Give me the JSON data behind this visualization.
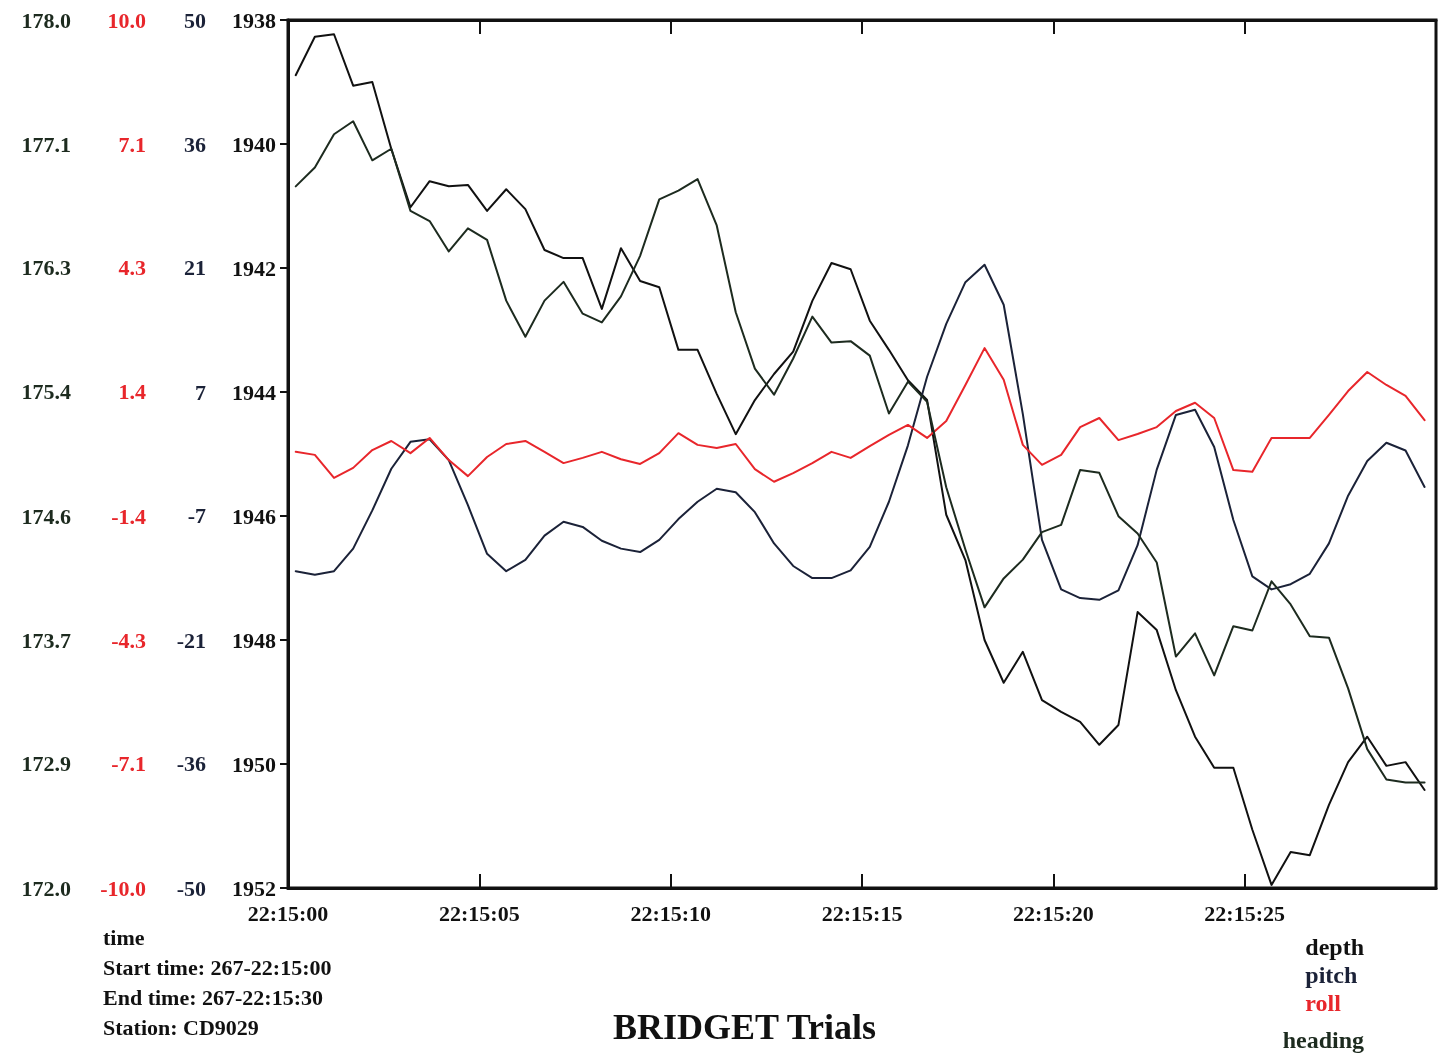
{
  "chart_data": [
    {
      "type": "line",
      "title": "BRIDGET Trials",
      "xlabel": "time",
      "annotations": [
        "Start time: 267-22:15:00",
        "End time: 267-22:15:30",
        "Station: CD9029"
      ],
      "legend": "bottom right",
      "xlim": [
        22.25,
        22.258333
      ],
      "xticks": [
        {
          "value": 22.25,
          "label": "22:15:00"
        },
        {
          "value": 22.251389,
          "label": "22:15:05"
        },
        {
          "value": 22.252778,
          "label": "22:15:10"
        },
        {
          "value": 22.254167,
          "label": "22:15:15"
        },
        {
          "value": 22.255556,
          "label": "22:15:20"
        },
        {
          "value": 22.256944,
          "label": "22:15:25"
        }
      ],
      "ylim": [
        1952,
        1938
      ],
      "yticks": [
        1938,
        1940,
        1942,
        1944,
        1946,
        1948,
        1950,
        1952
      ],
      "y2lim": [
        -50,
        50
      ],
      "y2ticks": [
        {
          "value": 50,
          "label": "50"
        },
        {
          "value": 35.71,
          "label": "36"
        },
        {
          "value": 21.43,
          "label": "21"
        },
        {
          "value": 7.14,
          "label": "7"
        },
        {
          "value": -7.14,
          "label": "-7"
        },
        {
          "value": -21.43,
          "label": "-21"
        },
        {
          "value": -35.71,
          "label": "-36"
        },
        {
          "value": -50,
          "label": "-50"
        }
      ],
      "y3lim": [
        -10,
        10
      ],
      "y3ticks": [
        {
          "value": 10,
          "label": "10.0"
        },
        {
          "value": 7.14,
          "label": "7.1"
        },
        {
          "value": 4.29,
          "label": "4.3"
        },
        {
          "value": 1.43,
          "label": "1.4"
        },
        {
          "value": -1.43,
          "label": "-1.4"
        },
        {
          "value": -4.29,
          "label": "-4.3"
        },
        {
          "value": -7.14,
          "label": "-7.1"
        },
        {
          "value": -10,
          "label": "-10.0"
        }
      ],
      "x": [
        22.250056,
        22.250195,
        22.250334,
        22.250473,
        22.250612,
        22.25075,
        22.250889,
        22.251028,
        22.251167,
        22.251306,
        22.251445,
        22.251584,
        22.251723,
        22.251862,
        22.252,
        22.252139,
        22.252278,
        22.252417,
        22.252556,
        22.252695,
        22.252834,
        22.252973,
        22.253112,
        22.25325,
        22.253389,
        22.253528,
        22.253667,
        22.253806,
        22.253945,
        22.254084,
        22.254223,
        22.254362,
        22.2545,
        22.254639,
        22.254778,
        22.254917,
        22.255056,
        22.255195,
        22.255334,
        22.255473,
        22.255612,
        22.25575,
        22.255889,
        22.256028,
        22.256167,
        22.256306,
        22.256445,
        22.256584,
        22.256723,
        22.256862,
        22.257,
        22.257139,
        22.257278,
        22.257417,
        22.257556,
        22.257695,
        22.257834,
        22.257973,
        22.258112,
        22.25825
      ],
      "series": [
        {
          "name": "depth",
          "color": "#111111",
          "values": [
            1938.89,
            1938.27,
            1938.23,
            1939.06,
            1939.0,
            1940.08,
            1941.02,
            1940.6,
            1940.68,
            1940.66,
            1941.08,
            1940.73,
            1941.05,
            1941.71,
            1941.84,
            1941.84,
            1942.66,
            1941.68,
            1942.21,
            1942.31,
            1943.32,
            1943.32,
            1944.03,
            1944.68,
            1944.13,
            1943.71,
            1943.35,
            1942.53,
            1941.92,
            1942.02,
            1942.85,
            1943.32,
            1943.81,
            1944.13,
            1945.98,
            1946.71,
            1948.0,
            1948.69,
            1948.19,
            1948.97,
            1949.16,
            1949.32,
            1949.69,
            1949.37,
            1947.55,
            1947.84,
            1948.81,
            1949.56,
            1950.06,
            1950.06,
            1951.06,
            1951.95,
            1951.42,
            1951.47,
            1950.66,
            1949.97,
            1949.56,
            1950.03,
            1949.97,
            1950.42
          ]
        },
        {
          "name": "pitch",
          "color": "#1b2238",
          "axis": "y2",
          "values": [
            -13.5,
            -13.9,
            -13.5,
            -10.9,
            -6.5,
            -1.7,
            1.4,
            1.7,
            -0.7,
            -5.9,
            -11.5,
            -13.5,
            -12.2,
            -9.4,
            -7.8,
            -8.4,
            -10.0,
            -10.9,
            -11.3,
            -9.9,
            -7.5,
            -5.5,
            -4.0,
            -4.4,
            -6.7,
            -10.3,
            -12.9,
            -14.3,
            -14.3,
            -13.4,
            -10.7,
            -5.5,
            1.0,
            8.9,
            15.0,
            19.8,
            21.8,
            17.2,
            4.6,
            -9.9,
            -15.6,
            -16.6,
            -16.8,
            -15.7,
            -10.5,
            -1.8,
            4.5,
            5.1,
            0.8,
            -7.6,
            -14.1,
            -15.6,
            -15.0,
            -13.8,
            -10.3,
            -4.8,
            -0.8,
            1.3,
            0.4,
            -3.8
          ]
        },
        {
          "name": "roll",
          "color": "#e8262b",
          "axis": "y3",
          "values": [
            0.05,
            -0.02,
            -0.55,
            -0.32,
            0.09,
            0.3,
            0.02,
            0.37,
            -0.14,
            -0.51,
            -0.07,
            0.23,
            0.3,
            0.05,
            -0.21,
            -0.09,
            0.05,
            -0.12,
            -0.23,
            0.02,
            0.48,
            0.21,
            0.14,
            0.23,
            -0.35,
            -0.64,
            -0.44,
            -0.21,
            0.05,
            -0.09,
            0.18,
            0.44,
            0.67,
            0.37,
            0.76,
            1.59,
            2.44,
            1.71,
            0.21,
            -0.25,
            -0.02,
            0.62,
            0.83,
            0.32,
            0.46,
            0.62,
            0.99,
            1.18,
            0.83,
            -0.37,
            -0.41,
            0.37,
            0.37,
            0.37,
            0.9,
            1.45,
            1.89,
            1.59,
            1.34,
            0.78
          ]
        }
      ]
    },
    {
      "type": "line",
      "legend": "bottom right",
      "tick_labels": "y",
      "xlim": [
        22.25,
        22.258333
      ],
      "ylim": [
        172,
        178
      ],
      "yticks": [
        {
          "value": 178,
          "label": "178.0"
        },
        {
          "value": 177.14,
          "label": "177.1"
        },
        {
          "value": 176.29,
          "label": "176.3"
        },
        {
          "value": 175.43,
          "label": "175.4"
        },
        {
          "value": 174.57,
          "label": "174.6"
        },
        {
          "value": 173.71,
          "label": "173.7"
        },
        {
          "value": 172.86,
          "label": "172.9"
        },
        {
          "value": 172,
          "label": "172.0"
        }
      ],
      "x": [
        22.250056,
        22.250195,
        22.250334,
        22.250473,
        22.250612,
        22.25075,
        22.250889,
        22.251028,
        22.251167,
        22.251306,
        22.251445,
        22.251584,
        22.251723,
        22.251862,
        22.252,
        22.252139,
        22.252278,
        22.252417,
        22.252556,
        22.252695,
        22.252834,
        22.252973,
        22.253112,
        22.25325,
        22.253389,
        22.253528,
        22.253667,
        22.253806,
        22.253945,
        22.254084,
        22.254223,
        22.254362,
        22.2545,
        22.254639,
        22.254778,
        22.254917,
        22.255056,
        22.255195,
        22.255334,
        22.255473,
        22.255612,
        22.25575,
        22.255889,
        22.256028,
        22.256167,
        22.256306,
        22.256445,
        22.256584,
        22.256723,
        22.256862,
        22.257,
        22.257139,
        22.257278,
        22.257417,
        22.257556,
        22.257695,
        22.257834,
        22.257973,
        22.258112,
        22.25825
      ],
      "series": [
        {
          "name": "heading",
          "color": "#1d2b1f",
          "values": [
            176.85,
            176.98,
            177.21,
            177.3,
            177.03,
            177.11,
            176.68,
            176.61,
            176.4,
            176.56,
            176.48,
            176.06,
            175.81,
            176.06,
            176.19,
            175.97,
            175.91,
            176.09,
            176.37,
            176.76,
            176.82,
            176.9,
            176.58,
            175.98,
            175.59,
            175.41,
            175.66,
            175.95,
            175.77,
            175.78,
            175.68,
            175.28,
            175.5,
            175.36,
            174.77,
            174.34,
            173.94,
            174.14,
            174.27,
            174.46,
            174.51,
            174.89,
            174.87,
            174.57,
            174.45,
            174.25,
            173.6,
            173.76,
            173.47,
            173.81,
            173.78,
            174.12,
            173.96,
            173.74,
            173.73,
            173.38,
            172.96,
            172.75,
            172.73,
            172.73
          ]
        }
      ]
    }
  ]
}
